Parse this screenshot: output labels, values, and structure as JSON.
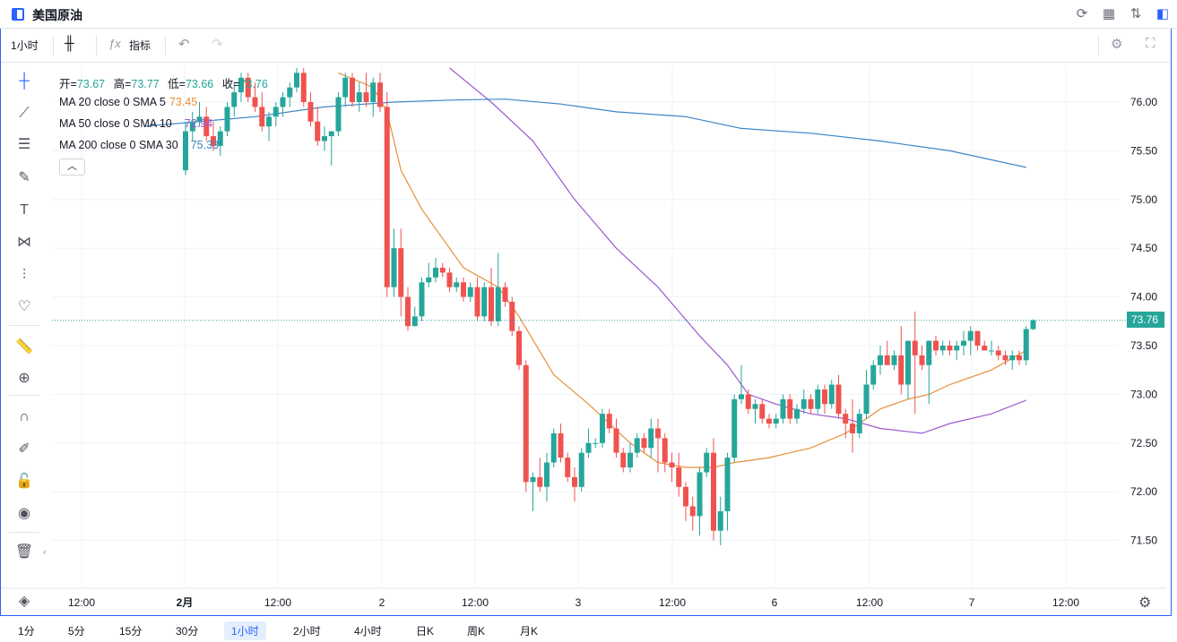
{
  "window": {
    "title": "美国原油"
  },
  "toolbar": {
    "interval": "1小时",
    "indicators_label": "指标"
  },
  "legend": {
    "ohlc": {
      "open_label": "开=",
      "open": "73.67",
      "high_label": "高=",
      "high": "73.77",
      "low_label": "低=",
      "low": "73.66",
      "close_label": "收=",
      "close": "73.76"
    },
    "ma": [
      {
        "label": "MA 20 close 0 SMA 5",
        "value": "73.45",
        "color": "#e69138"
      },
      {
        "label": "MA 50 close 0 SMA 10",
        "value": "72.94",
        "color": "#9b59d0"
      },
      {
        "label": "MA 200 close 0 SMA 30",
        "value": "75.33",
        "color": "#3d85c6"
      }
    ],
    "toggle_icon": "chevron-up-icon"
  },
  "colors": {
    "up": "#26a69a",
    "down": "#ef5350",
    "accent": "#2962ff",
    "grid": "#f0f3fa"
  },
  "price_axis": {
    "ticks": [
      "76.00",
      "75.50",
      "75.00",
      "74.50",
      "74.00",
      "73.50",
      "73.00",
      "72.50",
      "72.00",
      "71.50"
    ],
    "last_price": "73.76"
  },
  "time_axis": {
    "ticks": [
      "12:00",
      "2月",
      "12:00",
      "2",
      "12:00",
      "3",
      "12:00",
      "6",
      "12:00",
      "7",
      "12:00"
    ]
  },
  "bottom_intervals": [
    {
      "label": "1分",
      "active": false
    },
    {
      "label": "5分",
      "active": false
    },
    {
      "label": "15分",
      "active": false
    },
    {
      "label": "30分",
      "active": false
    },
    {
      "label": "1小时",
      "active": true
    },
    {
      "label": "2小时",
      "active": false
    },
    {
      "label": "4小时",
      "active": false
    },
    {
      "label": "日K",
      "active": false
    },
    {
      "label": "周K",
      "active": false
    },
    {
      "label": "月K",
      "active": false
    }
  ],
  "chart_data": {
    "type": "candlestick",
    "ylim": [
      71.2,
      76.35
    ],
    "candles": [
      [
        75.3,
        75.8,
        75.25,
        75.7
      ],
      [
        75.7,
        75.9,
        75.6,
        75.8
      ],
      [
        75.8,
        76.0,
        75.75,
        75.85
      ],
      [
        75.85,
        75.95,
        75.6,
        75.65
      ],
      [
        75.65,
        75.8,
        75.5,
        75.55
      ],
      [
        75.55,
        75.75,
        75.45,
        75.7
      ],
      [
        75.7,
        76.0,
        75.65,
        75.95
      ],
      [
        75.95,
        76.2,
        75.85,
        76.1
      ],
      [
        76.1,
        76.3,
        76.0,
        76.25
      ],
      [
        76.25,
        76.3,
        76.0,
        76.05
      ],
      [
        76.05,
        76.2,
        75.9,
        75.95
      ],
      [
        75.95,
        76.1,
        75.7,
        75.75
      ],
      [
        75.75,
        75.9,
        75.6,
        75.85
      ],
      [
        75.85,
        76.0,
        75.75,
        75.95
      ],
      [
        75.95,
        76.1,
        75.85,
        76.05
      ],
      [
        76.05,
        76.2,
        75.95,
        76.15
      ],
      [
        76.15,
        76.35,
        76.1,
        76.3
      ],
      [
        76.3,
        76.35,
        75.95,
        76.0
      ],
      [
        76.0,
        76.1,
        75.75,
        75.8
      ],
      [
        75.8,
        75.95,
        75.55,
        75.6
      ],
      [
        75.6,
        75.75,
        75.5,
        75.65
      ],
      [
        75.65,
        75.7,
        75.35,
        75.7
      ],
      [
        75.7,
        76.1,
        75.65,
        76.05
      ],
      [
        76.05,
        76.3,
        75.95,
        76.25
      ],
      [
        76.25,
        76.3,
        75.95,
        76.0
      ],
      [
        76.0,
        76.2,
        75.9,
        76.1
      ],
      [
        76.1,
        76.3,
        75.95,
        76.0
      ],
      [
        76.0,
        76.25,
        75.85,
        76.2
      ],
      [
        76.2,
        76.3,
        75.9,
        75.95
      ],
      [
        75.95,
        76.1,
        74.0,
        74.1
      ],
      [
        74.1,
        74.7,
        74.0,
        74.5
      ],
      [
        74.5,
        74.7,
        73.8,
        74.0
      ],
      [
        74.0,
        74.1,
        73.65,
        73.7
      ],
      [
        73.7,
        73.9,
        73.7,
        73.8
      ],
      [
        73.8,
        74.2,
        73.75,
        74.15
      ],
      [
        74.15,
        74.35,
        74.1,
        74.2
      ],
      [
        74.2,
        74.4,
        74.15,
        74.3
      ],
      [
        74.3,
        74.35,
        74.2,
        74.25
      ],
      [
        74.25,
        74.3,
        74.05,
        74.1
      ],
      [
        74.1,
        74.2,
        74.05,
        74.15
      ],
      [
        74.15,
        74.2,
        73.95,
        74.0
      ],
      [
        74.0,
        74.15,
        73.95,
        74.1
      ],
      [
        74.1,
        74.2,
        73.75,
        73.8
      ],
      [
        73.8,
        74.15,
        73.75,
        74.1
      ],
      [
        74.1,
        74.3,
        73.7,
        73.75
      ],
      [
        73.75,
        74.45,
        73.7,
        74.1
      ],
      [
        74.1,
        74.15,
        73.9,
        73.95
      ],
      [
        73.95,
        74.0,
        73.6,
        73.65
      ],
      [
        73.65,
        73.7,
        73.25,
        73.3
      ],
      [
        73.3,
        73.35,
        72.0,
        72.1
      ],
      [
        72.1,
        72.2,
        71.8,
        72.15
      ],
      [
        72.15,
        72.35,
        72.0,
        72.05
      ],
      [
        72.05,
        72.4,
        71.9,
        72.3
      ],
      [
        72.3,
        72.65,
        72.25,
        72.6
      ],
      [
        72.6,
        72.7,
        72.3,
        72.35
      ],
      [
        72.35,
        72.4,
        72.1,
        72.15
      ],
      [
        72.15,
        72.25,
        71.9,
        72.05
      ],
      [
        72.05,
        72.45,
        72.0,
        72.4
      ],
      [
        72.4,
        72.65,
        72.35,
        72.5
      ],
      [
        72.5,
        72.55,
        72.45,
        72.5
      ],
      [
        72.5,
        72.85,
        72.45,
        72.8
      ],
      [
        72.8,
        72.85,
        72.6,
        72.65
      ],
      [
        72.65,
        72.75,
        72.35,
        72.4
      ],
      [
        72.4,
        72.45,
        72.2,
        72.25
      ],
      [
        72.25,
        72.5,
        72.2,
        72.4
      ],
      [
        72.4,
        72.6,
        72.35,
        72.55
      ],
      [
        72.55,
        72.6,
        72.4,
        72.45
      ],
      [
        72.45,
        72.75,
        72.35,
        72.65
      ],
      [
        72.65,
        72.75,
        72.2,
        72.55
      ],
      [
        72.55,
        72.6,
        72.2,
        72.3
      ],
      [
        72.3,
        72.4,
        72.1,
        72.25
      ],
      [
        72.25,
        72.4,
        71.95,
        72.05
      ],
      [
        72.05,
        72.1,
        71.7,
        71.85
      ],
      [
        71.85,
        71.95,
        71.6,
        71.75
      ],
      [
        71.75,
        72.25,
        71.55,
        72.2
      ],
      [
        72.2,
        72.45,
        72.15,
        72.4
      ],
      [
        72.4,
        72.55,
        71.5,
        71.6
      ],
      [
        71.6,
        71.95,
        71.45,
        71.8
      ],
      [
        71.8,
        72.4,
        71.6,
        72.35
      ],
      [
        72.35,
        73.0,
        72.3,
        72.95
      ],
      [
        72.95,
        73.3,
        72.9,
        73.0
      ],
      [
        73.0,
        73.05,
        72.8,
        72.85
      ],
      [
        72.85,
        72.95,
        72.7,
        72.9
      ],
      [
        72.9,
        72.95,
        72.7,
        72.75
      ],
      [
        72.75,
        72.8,
        72.65,
        72.7
      ],
      [
        72.7,
        72.8,
        72.65,
        72.75
      ],
      [
        72.75,
        73.0,
        72.7,
        72.95
      ],
      [
        72.95,
        73.0,
        72.7,
        72.75
      ],
      [
        72.75,
        72.9,
        72.7,
        72.85
      ],
      [
        72.85,
        73.05,
        72.8,
        72.95
      ],
      [
        72.95,
        73.0,
        72.8,
        72.85
      ],
      [
        72.85,
        73.1,
        72.8,
        73.05
      ],
      [
        73.05,
        73.1,
        72.8,
        72.9
      ],
      [
        72.9,
        73.15,
        72.85,
        73.1
      ],
      [
        73.1,
        73.2,
        72.75,
        72.8
      ],
      [
        72.8,
        72.85,
        72.55,
        72.7
      ],
      [
        72.7,
        72.95,
        72.4,
        72.6
      ],
      [
        72.6,
        72.85,
        72.55,
        72.8
      ],
      [
        72.8,
        73.25,
        72.75,
        73.1
      ],
      [
        73.1,
        73.35,
        73.05,
        73.3
      ],
      [
        73.3,
        73.5,
        73.2,
        73.4
      ],
      [
        73.4,
        73.55,
        73.35,
        73.3
      ],
      [
        73.3,
        73.45,
        73.25,
        73.4
      ],
      [
        73.4,
        73.7,
        73.0,
        73.1
      ],
      [
        73.1,
        73.55,
        72.95,
        73.55
      ],
      [
        73.55,
        73.85,
        72.8,
        73.4
      ],
      [
        73.4,
        73.5,
        73.25,
        73.3
      ],
      [
        73.3,
        73.55,
        72.9,
        73.55
      ],
      [
        73.55,
        73.6,
        73.4,
        73.45
      ],
      [
        73.45,
        73.55,
        73.4,
        73.5
      ],
      [
        73.5,
        73.55,
        73.4,
        73.45
      ],
      [
        73.45,
        73.55,
        73.35,
        73.5
      ],
      [
        73.5,
        73.65,
        73.4,
        73.55
      ],
      [
        73.55,
        73.7,
        73.4,
        73.65
      ],
      [
        73.65,
        73.65,
        73.45,
        73.5
      ],
      [
        73.5,
        73.55,
        73.45,
        73.45
      ],
      [
        73.45,
        73.55,
        73.4,
        73.45
      ],
      [
        73.45,
        73.5,
        73.35,
        73.4
      ],
      [
        73.4,
        73.45,
        73.3,
        73.35
      ],
      [
        73.35,
        73.45,
        73.25,
        73.4
      ],
      [
        73.4,
        73.45,
        73.3,
        73.35
      ],
      [
        73.35,
        73.7,
        73.3,
        73.67
      ],
      [
        73.67,
        73.77,
        73.66,
        73.76
      ]
    ],
    "ma_lines": [
      {
        "name": "MA 20 close 0 SMA 5",
        "color": "#e69138",
        "points": [
          [
            22,
            76.3
          ],
          [
            27,
            76.15
          ],
          [
            29,
            75.9
          ],
          [
            31,
            75.3
          ],
          [
            34,
            74.9
          ],
          [
            40,
            74.3
          ],
          [
            45,
            74.1
          ],
          [
            48,
            73.8
          ],
          [
            53,
            73.2
          ],
          [
            58,
            72.9
          ],
          [
            64,
            72.5
          ],
          [
            68,
            72.3
          ],
          [
            72,
            72.25
          ],
          [
            76,
            72.25
          ],
          [
            79,
            72.3
          ],
          [
            84,
            72.35
          ],
          [
            90,
            72.45
          ],
          [
            95,
            72.6
          ],
          [
            100,
            72.85
          ],
          [
            104,
            72.95
          ],
          [
            107,
            73.0
          ],
          [
            110,
            73.1
          ],
          [
            116,
            73.25
          ],
          [
            121,
            73.45
          ]
        ]
      },
      {
        "name": "MA 50 close 0 SMA 10",
        "color": "#9b59d0",
        "points": [
          [
            38,
            76.35
          ],
          [
            44,
            76.0
          ],
          [
            50,
            75.6
          ],
          [
            56,
            75.0
          ],
          [
            62,
            74.5
          ],
          [
            68,
            74.1
          ],
          [
            74,
            73.6
          ],
          [
            78,
            73.3
          ],
          [
            81,
            73.0
          ],
          [
            85,
            72.9
          ],
          [
            90,
            72.8
          ],
          [
            95,
            72.75
          ],
          [
            100,
            72.65
          ],
          [
            106,
            72.6
          ],
          [
            110,
            72.7
          ],
          [
            116,
            72.8
          ],
          [
            121,
            72.94
          ]
        ]
      },
      {
        "name": "MA 200 close 0 SMA 30",
        "color": "#3d85c6",
        "points": [
          [
            -6,
            75.75
          ],
          [
            10,
            75.85
          ],
          [
            20,
            75.95
          ],
          [
            30,
            76.0
          ],
          [
            38,
            76.02
          ],
          [
            46,
            76.03
          ],
          [
            54,
            75.98
          ],
          [
            62,
            75.9
          ],
          [
            72,
            75.85
          ],
          [
            80,
            75.73
          ],
          [
            90,
            75.68
          ],
          [
            100,
            75.6
          ],
          [
            110,
            75.5
          ],
          [
            121,
            75.33
          ]
        ]
      }
    ]
  }
}
